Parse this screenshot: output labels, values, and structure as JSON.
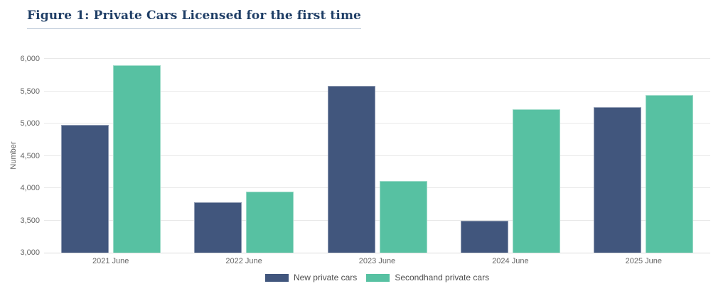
{
  "header": {
    "title": "Figure 1: Private Cars Licensed for the first time"
  },
  "chart_data": {
    "type": "bar",
    "title": "Figure 1: Private Cars Licensed for the first time",
    "categories": [
      "2021 June",
      "2022 June",
      "2023 June",
      "2024 June",
      "2025 June"
    ],
    "series": [
      {
        "name": "New private cars",
        "color": "#41567d",
        "values": [
          4980,
          3780,
          5580,
          3500,
          5250
        ]
      },
      {
        "name": "Secondhand private cars",
        "color": "#57c1a2",
        "values": [
          5900,
          3950,
          4110,
          5220,
          5440
        ]
      }
    ],
    "xlabel": "",
    "ylabel": "Number",
    "ylim": [
      3000,
      6000
    ],
    "yticks": [
      3000,
      3500,
      4000,
      4500,
      5000,
      5500,
      6000
    ],
    "grid": true,
    "legend_position": "bottom",
    "background": "#ffffff",
    "title_color": "#1f3e66",
    "axis_text_color": "#666666"
  }
}
